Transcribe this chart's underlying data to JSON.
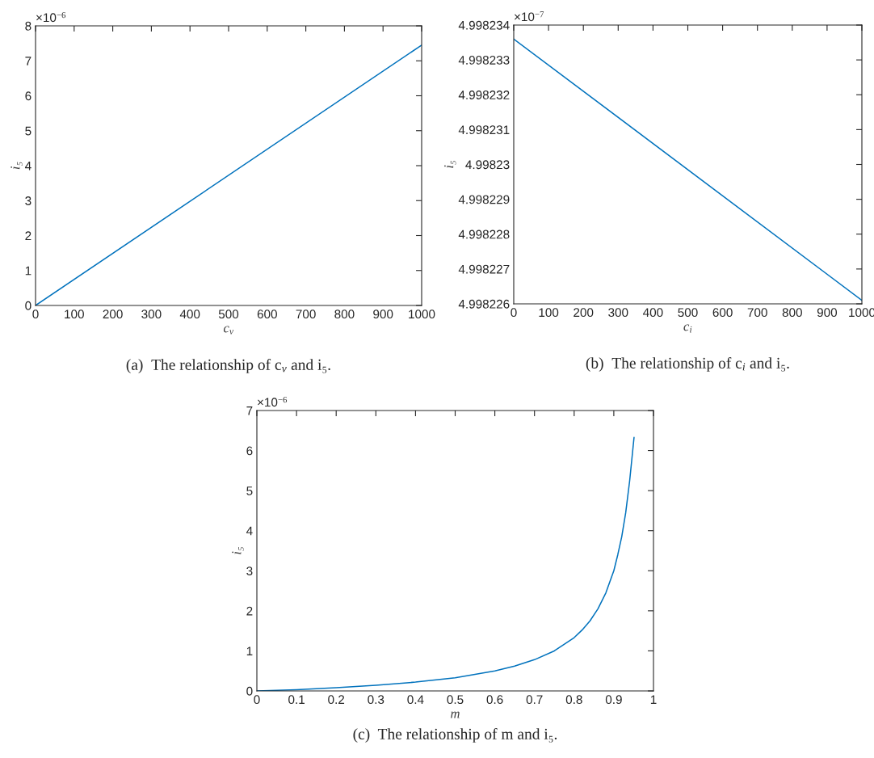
{
  "chart_data": [
    {
      "type": "line",
      "title": "(a)  The relationship of c$_{v}$ and i₅.",
      "xlabel": "c$_{v}$",
      "ylabel": "i₅",
      "annotations": [
        "×10$^{−6}$"
      ],
      "series": [
        {
          "color": "#0072bd",
          "x": [
            0,
            1000
          ],
          "values": [
            0,
            7.45
          ]
        }
      ],
      "xlim": [
        0,
        1000
      ],
      "xticks": [
        0,
        100,
        200,
        300,
        400,
        500,
        600,
        700,
        800,
        900,
        1000
      ],
      "ylim": [
        0,
        8
      ],
      "yticks": [
        0,
        1,
        2,
        3,
        4,
        5,
        6,
        7,
        8
      ],
      "grid": false,
      "legend": false
    },
    {
      "type": "line",
      "title": "(b)  The relationship of c$_{i}$ and i₅.",
      "xlabel": "c$_{i}$",
      "ylabel": "i₅",
      "annotations": [
        "×10$^{−7}$"
      ],
      "series": [
        {
          "color": "#0072bd",
          "x": [
            0,
            1000
          ],
          "values": [
            4.9982336,
            4.9982261
          ]
        }
      ],
      "xlim": [
        0,
        1000
      ],
      "xticks": [
        0,
        100,
        200,
        300,
        400,
        500,
        600,
        700,
        800,
        900,
        1000
      ],
      "ylim": [
        4.998226,
        4.998234
      ],
      "yticks": [
        4.998226,
        4.998227,
        4.998228,
        4.998229,
        4.99823,
        4.998231,
        4.998232,
        4.998233,
        4.998234
      ],
      "grid": false,
      "legend": false
    },
    {
      "type": "line",
      "title": "(c)  The relationship of m and i₅.",
      "xlabel": "m",
      "ylabel": "i₅",
      "annotations": [
        "×10$^{−6}$"
      ],
      "series": [
        {
          "color": "#0072bd",
          "x": [
            0,
            0.1,
            0.2,
            0.3,
            0.4,
            0.5,
            0.6,
            0.65,
            0.7,
            0.75,
            0.8,
            0.82,
            0.84,
            0.86,
            0.88,
            0.9,
            0.91,
            0.92,
            0.93,
            0.94,
            0.951
          ],
          "values": [
            0,
            0.03,
            0.08,
            0.14,
            0.22,
            0.33,
            0.5,
            0.62,
            0.78,
            1.0,
            1.33,
            1.52,
            1.75,
            2.05,
            2.45,
            3.0,
            3.4,
            3.85,
            4.45,
            5.25,
            6.33
          ]
        }
      ],
      "xlim": [
        0,
        1
      ],
      "xticks": [
        0,
        0.1,
        0.2,
        0.3,
        0.4,
        0.5,
        0.6,
        0.7,
        0.8,
        0.9,
        1
      ],
      "ylim": [
        0,
        7
      ],
      "yticks": [
        0,
        1,
        2,
        3,
        4,
        5,
        6,
        7
      ],
      "grid": false,
      "legend": false
    }
  ]
}
